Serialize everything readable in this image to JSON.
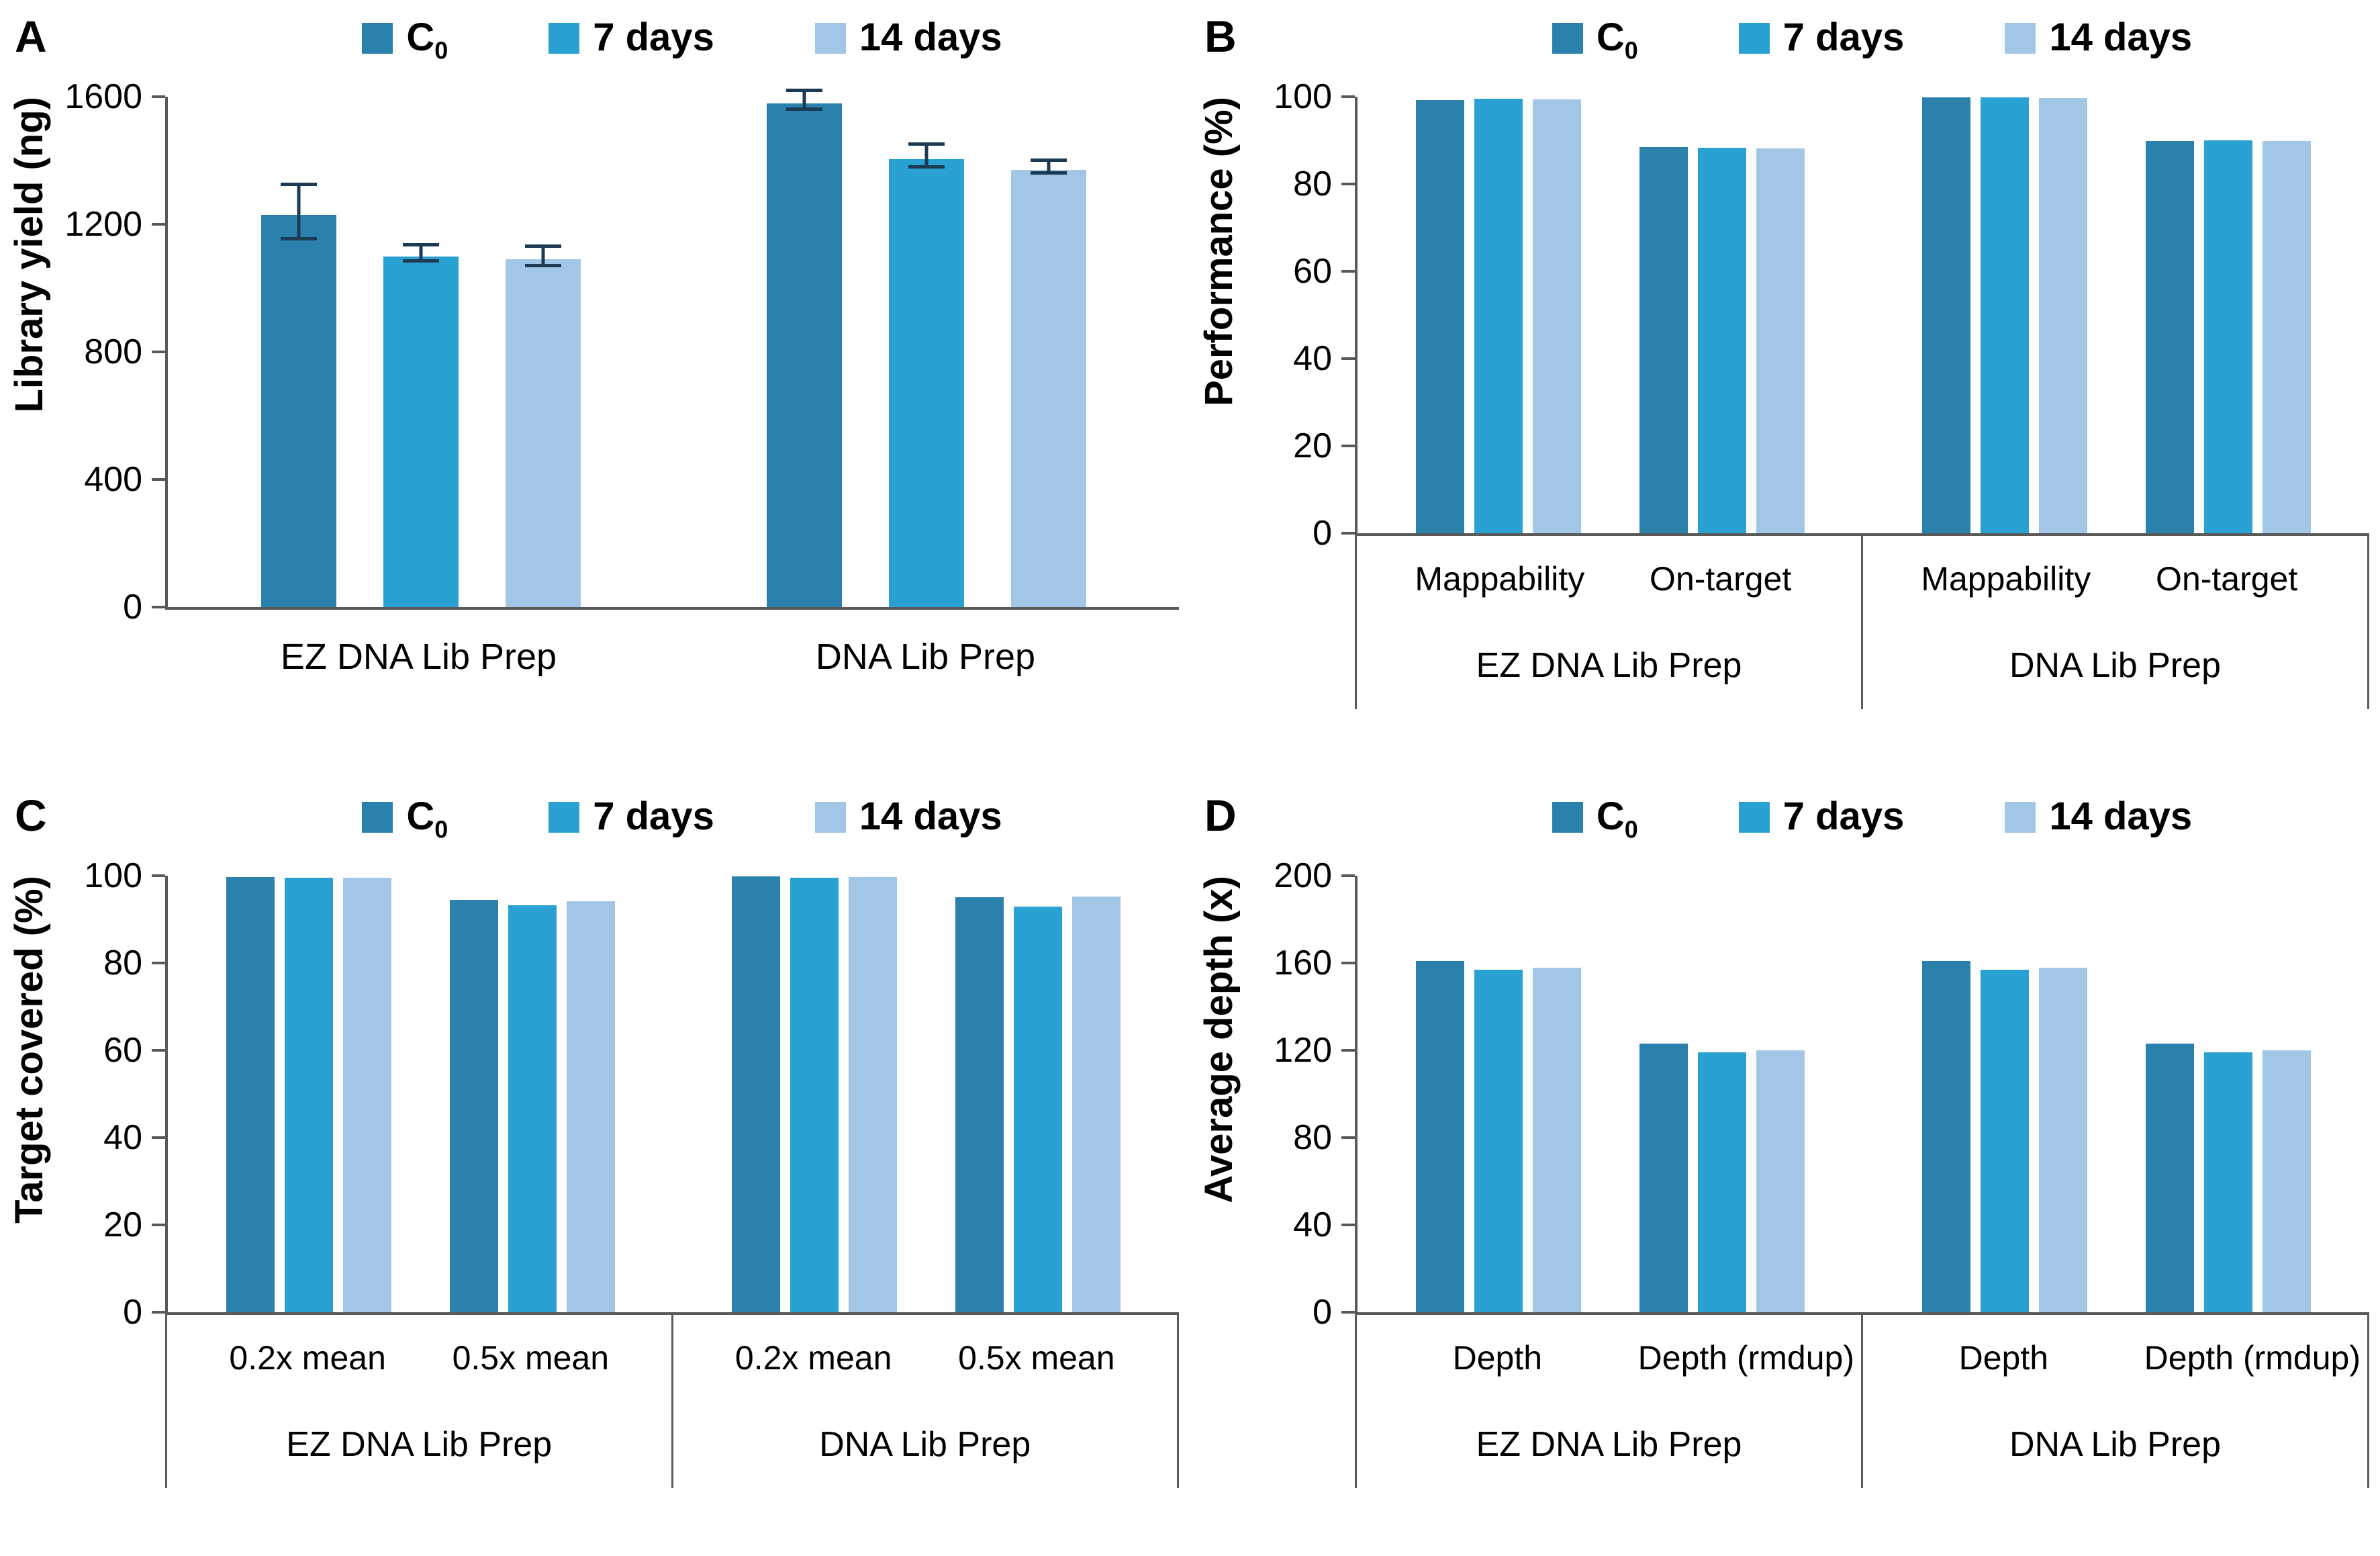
{
  "figure": {
    "series_colors": {
      "c0": "#2A82AC",
      "d7": "#29A2D3",
      "d14": "#A2C7E6"
    },
    "error_bar_color": "#1C3A54",
    "axis_color": "#595959",
    "legend": [
      {
        "label": "C",
        "subscript": "0",
        "color_key": "c0"
      },
      {
        "label": "7 days",
        "subscript": "",
        "color_key": "d7"
      },
      {
        "label": "14 days",
        "subscript": "",
        "color_key": "d14"
      }
    ]
  },
  "chart_data": [
    {
      "type": "bar",
      "panel": "A",
      "title": "",
      "xlabel": "",
      "ylabel": "Library yield (ng)",
      "ylim": [
        0,
        1600
      ],
      "yticks": [
        0,
        400,
        800,
        1200,
        1600
      ],
      "legend_entries": [
        "C0",
        "7 days",
        "14 days"
      ],
      "legend_position": "top-center",
      "grid": false,
      "two_level_axis": false,
      "groups": [
        {
          "label": "EZ DNA Lib Prep",
          "categories": [
            {
              "label": "",
              "values": [
                1230,
                1100,
                1090
              ],
              "errors": [
                80,
                20,
                25
              ]
            }
          ]
        },
        {
          "label": "DNA Lib Prep",
          "categories": [
            {
              "label": "",
              "values": [
                1580,
                1405,
                1370
              ],
              "errors": [
                25,
                30,
                15
              ]
            }
          ]
        }
      ]
    },
    {
      "type": "bar",
      "panel": "B",
      "title": "",
      "xlabel": "",
      "ylabel": "Performance (%)",
      "ylim": [
        0,
        100
      ],
      "yticks": [
        0,
        20,
        40,
        60,
        80,
        100
      ],
      "legend_entries": [
        "C0",
        "7 days",
        "14 days"
      ],
      "legend_position": "top-center",
      "grid": false,
      "two_level_axis": true,
      "groups": [
        {
          "label": "EZ DNA Lib Prep",
          "categories": [
            {
              "label": "Mappability",
              "values": [
                99.3,
                99.5,
                99.4
              ]
            },
            {
              "label": "On-target",
              "values": [
                88.4,
                88.3,
                88.2
              ]
            }
          ]
        },
        {
          "label": "DNA Lib Prep",
          "categories": [
            {
              "label": "Mappability",
              "values": [
                99.8,
                99.9,
                99.7
              ]
            },
            {
              "label": "On-target",
              "values": [
                89.9,
                90.0,
                89.8
              ]
            }
          ]
        }
      ]
    },
    {
      "type": "bar",
      "panel": "C",
      "title": "",
      "xlabel": "",
      "ylabel": "Target covered (%)",
      "ylim": [
        0,
        100
      ],
      "yticks": [
        0,
        20,
        40,
        60,
        80,
        100
      ],
      "legend_entries": [
        "C0",
        "7 days",
        "14 days"
      ],
      "legend_position": "top-center",
      "grid": false,
      "two_level_axis": true,
      "groups": [
        {
          "label": "EZ DNA Lib Prep",
          "categories": [
            {
              "label": "0.2x mean",
              "values": [
                99.7,
                99.6,
                99.6
              ]
            },
            {
              "label": "0.5x mean",
              "values": [
                94.5,
                93.3,
                94.1
              ]
            }
          ]
        },
        {
          "label": "DNA Lib Prep",
          "categories": [
            {
              "label": "0.2x mean",
              "values": [
                99.9,
                99.5,
                99.7
              ]
            },
            {
              "label": "0.5x mean",
              "values": [
                95.1,
                92.9,
                95.3
              ]
            }
          ]
        }
      ]
    },
    {
      "type": "bar",
      "panel": "D",
      "title": "",
      "xlabel": "",
      "ylabel": "Average depth (x)",
      "ylim": [
        0,
        200
      ],
      "yticks": [
        0,
        40,
        80,
        120,
        160,
        200
      ],
      "legend_entries": [
        "C0",
        "7 days",
        "14 days"
      ],
      "legend_position": "top-center",
      "grid": false,
      "two_level_axis": true,
      "groups": [
        {
          "label": "EZ DNA Lib Prep",
          "categories": [
            {
              "label": "Depth",
              "values": [
                161,
                157,
                158
              ]
            },
            {
              "label": "Depth (rmdup)",
              "values": [
                123,
                119,
                120
              ]
            }
          ]
        },
        {
          "label": "DNA Lib Prep",
          "categories": [
            {
              "label": "Depth",
              "values": [
                161,
                157,
                158
              ]
            },
            {
              "label": "Depth (rmdup)",
              "values": [
                123,
                119,
                120
              ]
            }
          ]
        }
      ]
    }
  ]
}
